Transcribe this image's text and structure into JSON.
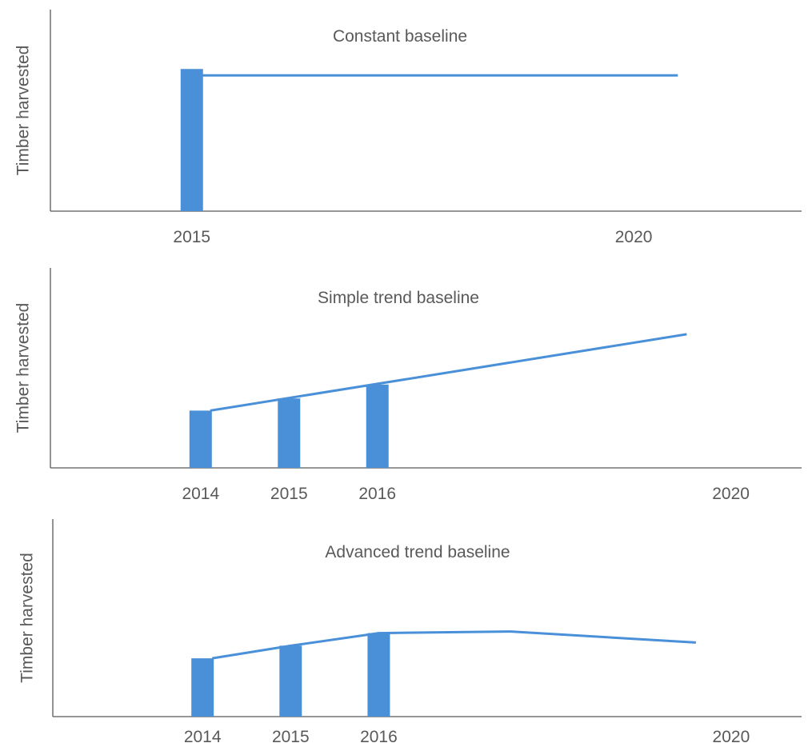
{
  "chart_data": [
    {
      "type": "bar",
      "title": "Constant baseline",
      "ylabel": "Timber harvested",
      "x_ticks": [
        "2015",
        "2020"
      ],
      "bars": [
        {
          "x": 2015,
          "value": 0.88
        }
      ],
      "line": [
        {
          "x": 2015,
          "value": 0.84
        },
        {
          "x": 2020.5,
          "value": 0.84
        }
      ],
      "xlim": [
        2013.4,
        2021.9
      ],
      "ylim": [
        0,
        1
      ],
      "grid": false,
      "colors": {
        "bar": "#4a90d9",
        "line": "#4a90d9",
        "axis": "#595959"
      }
    },
    {
      "type": "bar",
      "title": "Simple trend baseline",
      "ylabel": "Timber harvested",
      "x_ticks": [
        "2014",
        "2015",
        "2016",
        "2020"
      ],
      "bars": [
        {
          "x": 2014,
          "value": 0.33
        },
        {
          "x": 2015,
          "value": 0.4
        },
        {
          "x": 2016,
          "value": 0.48
        }
      ],
      "line": [
        {
          "x": 2014,
          "value": 0.33
        },
        {
          "x": 2019.5,
          "value": 0.77
        }
      ],
      "xlim": [
        2012.3,
        2020.8
      ],
      "ylim": [
        0,
        1
      ],
      "grid": false,
      "colors": {
        "bar": "#4a90d9",
        "line": "#4a90d9",
        "axis": "#595959"
      }
    },
    {
      "type": "bar",
      "title": "Advanced trend baseline",
      "ylabel": "Timber harvested",
      "x_ticks": [
        "2014",
        "2015",
        "2016",
        "2020"
      ],
      "bars": [
        {
          "x": 2014,
          "value": 0.37
        },
        {
          "x": 2015,
          "value": 0.45
        },
        {
          "x": 2016,
          "value": 0.53
        }
      ],
      "line": [
        {
          "x": 2014,
          "value": 0.37
        },
        {
          "x": 2015,
          "value": 0.45
        },
        {
          "x": 2016,
          "value": 0.53
        },
        {
          "x": 2017.5,
          "value": 0.54
        },
        {
          "x": 2019.6,
          "value": 0.47
        }
      ],
      "xlim": [
        2012.3,
        2020.8
      ],
      "ylim": [
        0,
        1
      ],
      "grid": false,
      "colors": {
        "bar": "#4a90d9",
        "line": "#4a90d9",
        "axis": "#595959"
      }
    }
  ]
}
